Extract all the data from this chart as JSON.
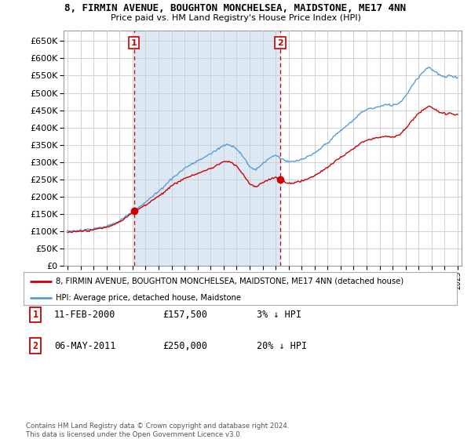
{
  "title": "8, FIRMIN AVENUE, BOUGHTON MONCHELSEA, MAIDSTONE, ME17 4NN",
  "subtitle": "Price paid vs. HM Land Registry's House Price Index (HPI)",
  "legend_line1": "8, FIRMIN AVENUE, BOUGHTON MONCHELSEA, MAIDSTONE, ME17 4NN (detached house)",
  "legend_line2": "HPI: Average price, detached house, Maidstone",
  "annotation1_label": "1",
  "annotation1_date": "11-FEB-2000",
  "annotation1_price": "£157,500",
  "annotation1_hpi": "3% ↓ HPI",
  "annotation2_label": "2",
  "annotation2_date": "06-MAY-2011",
  "annotation2_price": "£250,000",
  "annotation2_hpi": "20% ↓ HPI",
  "copyright": "Contains HM Land Registry data © Crown copyright and database right 2024.\nThis data is licensed under the Open Government Licence v3.0.",
  "hpi_color": "#5b9bd5",
  "hpi_fill_color": "#dce9f5",
  "price_color": "#cc0000",
  "annotation_color": "#cc0000",
  "bg_color": "#ffffff",
  "grid_color": "#cccccc",
  "ylim": [
    0,
    680000
  ],
  "yticks": [
    0,
    50000,
    100000,
    150000,
    200000,
    250000,
    300000,
    350000,
    400000,
    450000,
    500000,
    550000,
    600000,
    650000
  ],
  "sale1_x": 2000.12,
  "sale1_y": 157500,
  "sale2_x": 2011.35,
  "sale2_y": 250000,
  "vline1_x": 2000.12,
  "vline2_x": 2011.35,
  "xlim_left": 1994.7,
  "xlim_right": 2025.3
}
